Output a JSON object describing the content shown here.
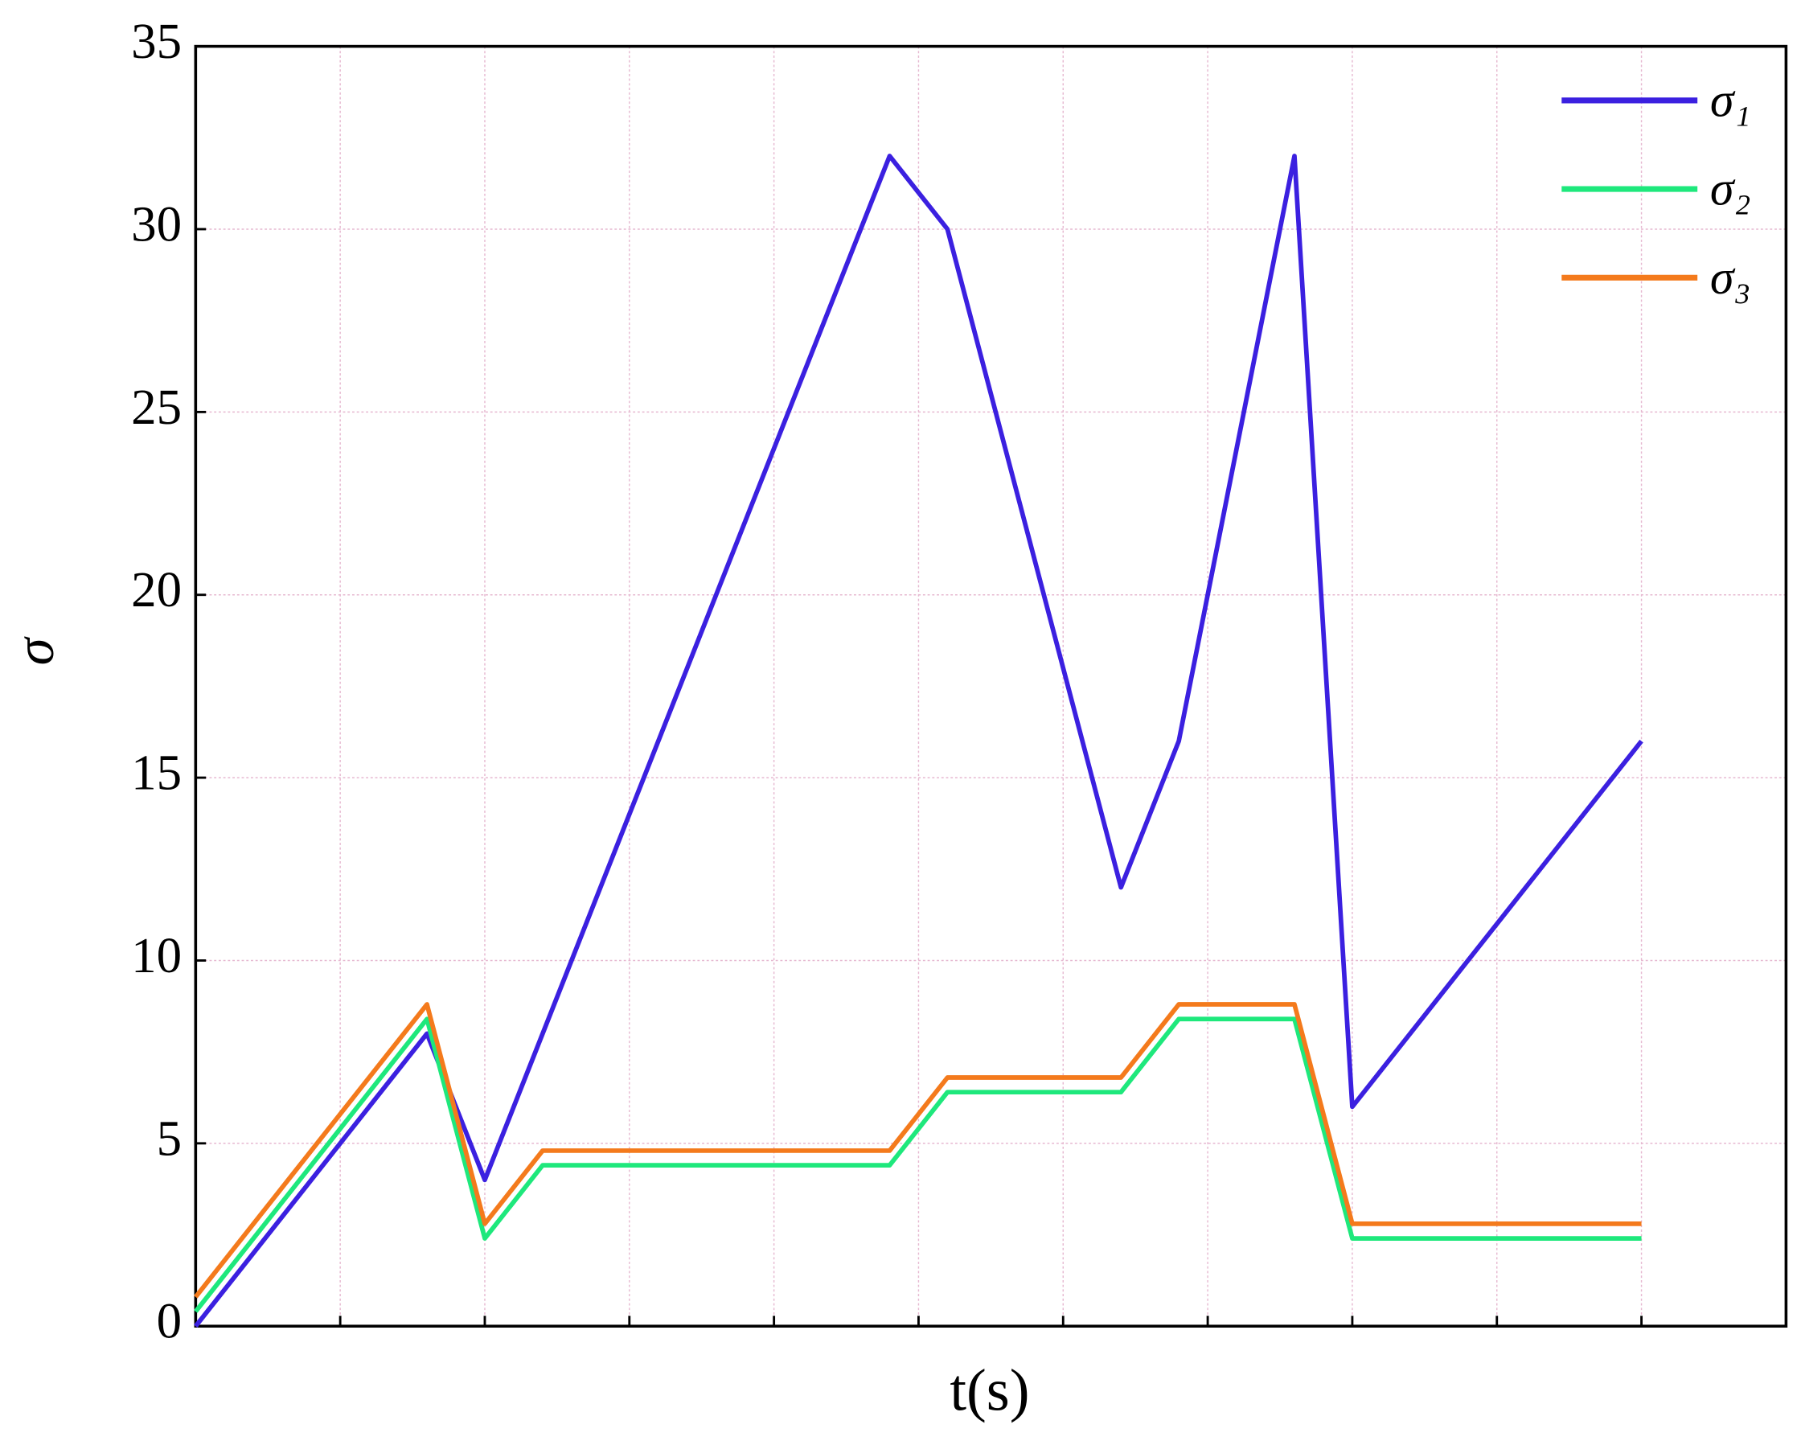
{
  "chart_data": {
    "type": "line",
    "y_label": "σ",
    "x_label": "t(s)",
    "x": [
      0,
      1.6,
      2,
      2.4,
      4.8,
      5.2,
      6.4,
      6.8,
      7.6,
      8,
      10
    ],
    "series": [
      {
        "name": "σ₁",
        "color": "#3b20e0",
        "values": [
          0,
          8,
          4,
          8,
          32,
          30,
          12,
          16,
          32,
          6,
          16
        ]
      },
      {
        "name": "σ₂",
        "color": "#1ee87c",
        "values": [
          0.4,
          8.4,
          2.4,
          4.4,
          4.4,
          6.4,
          6.4,
          8.4,
          8.4,
          2.4,
          2.4
        ]
      },
      {
        "name": "σ₃",
        "color": "#f47a1c",
        "values": [
          0.8,
          8.8,
          2.8,
          4.8,
          4.8,
          6.8,
          6.8,
          8.8,
          8.8,
          2.8,
          2.8
        ]
      }
    ],
    "xlim": [
      0,
      11
    ],
    "xticks": [
      0,
      1,
      2,
      3,
      4,
      5,
      6,
      7,
      8,
      9,
      10
    ],
    "ylim": [
      0,
      35
    ],
    "yticks": [
      0,
      5,
      10,
      15,
      20,
      25,
      30,
      35
    ],
    "grid": true,
    "legend": "upper right"
  }
}
